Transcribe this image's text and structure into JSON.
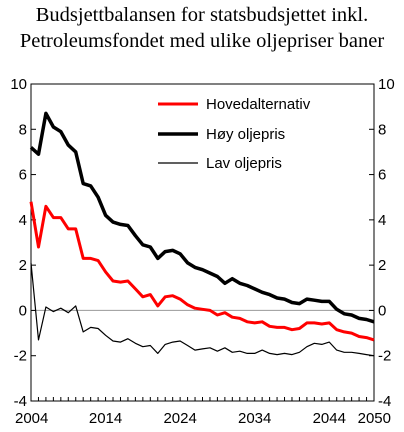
{
  "chart_data": {
    "type": "line",
    "title_lines": [
      "Budsjettbalansen for statsbudsjettet inkl.",
      "Petroleumsfondet  med ulike oljepriser baner"
    ],
    "xlabel": "",
    "ylabel": "",
    "xlim": [
      2004,
      2050
    ],
    "ylim": [
      -4,
      10
    ],
    "y_ticks": [
      -4,
      -2,
      0,
      2,
      4,
      6,
      8,
      10
    ],
    "x_tick_labels": [
      "2004",
      "2014",
      "2024",
      "2034",
      "2044",
      "2050"
    ],
    "grid": false,
    "zero_line": true,
    "legend_position": "top-right",
    "x": [
      2004,
      2005,
      2006,
      2007,
      2008,
      2009,
      2010,
      2011,
      2012,
      2013,
      2014,
      2015,
      2016,
      2017,
      2018,
      2019,
      2020,
      2021,
      2022,
      2023,
      2024,
      2025,
      2026,
      2027,
      2028,
      2029,
      2030,
      2031,
      2032,
      2033,
      2034,
      2035,
      2036,
      2037,
      2038,
      2039,
      2040,
      2041,
      2042,
      2043,
      2044,
      2045,
      2046,
      2047,
      2048,
      2049,
      2050
    ],
    "series": [
      {
        "name": "Hovedalternativ",
        "color": "#ff0000",
        "width": 3,
        "values": [
          4.8,
          2.8,
          4.6,
          4.1,
          4.1,
          3.6,
          3.6,
          2.3,
          2.3,
          2.2,
          1.7,
          1.3,
          1.25,
          1.3,
          0.95,
          0.6,
          0.7,
          0.2,
          0.6,
          0.65,
          0.5,
          0.25,
          0.1,
          0.05,
          0.0,
          -0.2,
          -0.1,
          -0.3,
          -0.35,
          -0.5,
          -0.55,
          -0.5,
          -0.7,
          -0.75,
          -0.75,
          -0.85,
          -0.8,
          -0.55,
          -0.55,
          -0.6,
          -0.55,
          -0.85,
          -0.95,
          -1.0,
          -1.15,
          -1.2,
          -1.3
        ]
      },
      {
        "name": "Høy oljepris",
        "color": "#000000",
        "width": 3.5,
        "values": [
          7.2,
          6.9,
          8.7,
          8.1,
          7.9,
          7.3,
          7.0,
          5.6,
          5.5,
          5.0,
          4.2,
          3.9,
          3.8,
          3.75,
          3.3,
          2.9,
          2.8,
          2.3,
          2.6,
          2.65,
          2.5,
          2.1,
          1.9,
          1.8,
          1.65,
          1.5,
          1.2,
          1.4,
          1.2,
          1.1,
          0.95,
          0.8,
          0.7,
          0.55,
          0.5,
          0.35,
          0.3,
          0.5,
          0.45,
          0.4,
          0.4,
          0.05,
          -0.15,
          -0.2,
          -0.35,
          -0.4,
          -0.5
        ]
      },
      {
        "name": "Lav oljepris",
        "color": "#000000",
        "width": 1.2,
        "values": [
          2.1,
          -1.3,
          0.15,
          -0.05,
          0.1,
          -0.1,
          0.2,
          -0.95,
          -0.75,
          -0.8,
          -1.1,
          -1.35,
          -1.4,
          -1.25,
          -1.45,
          -1.6,
          -1.55,
          -1.9,
          -1.5,
          -1.4,
          -1.35,
          -1.55,
          -1.75,
          -1.7,
          -1.65,
          -1.8,
          -1.65,
          -1.85,
          -1.8,
          -1.9,
          -1.9,
          -1.75,
          -1.9,
          -1.95,
          -1.9,
          -1.95,
          -1.85,
          -1.6,
          -1.45,
          -1.5,
          -1.4,
          -1.75,
          -1.85,
          -1.85,
          -1.9,
          -1.95,
          -2.0
        ]
      }
    ]
  }
}
